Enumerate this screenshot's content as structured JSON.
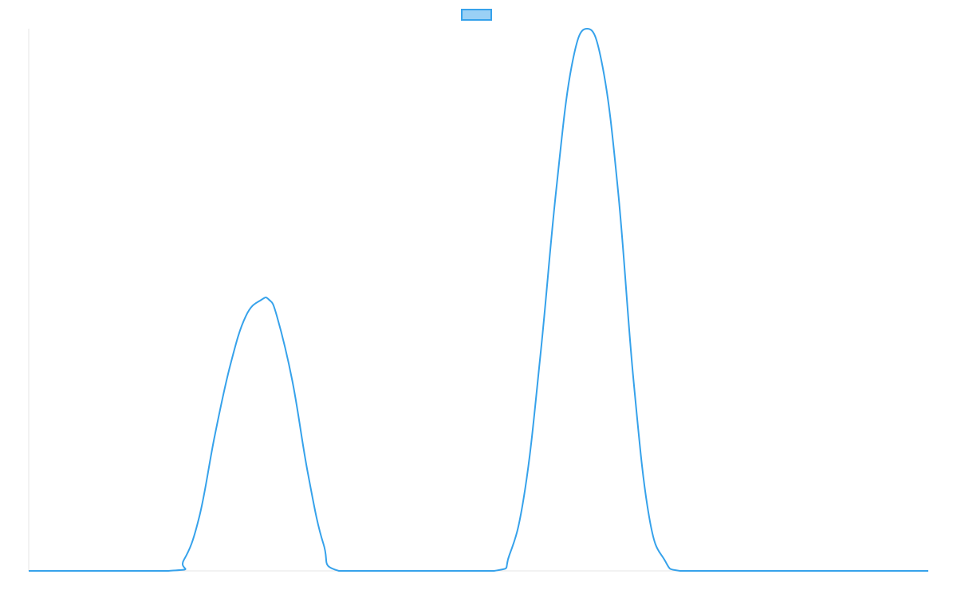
{
  "chart_data": {
    "type": "line",
    "title": "",
    "xlabel": "",
    "ylabel": "",
    "grid": false,
    "legend_placement": "top-center",
    "x": [
      0,
      0.9,
      1.0,
      1.1,
      1.2,
      1.3,
      1.4,
      1.5,
      1.55,
      1.6,
      1.7,
      1.8,
      1.9,
      2.0,
      2.5,
      3.0,
      3.1,
      3.2,
      3.3,
      3.4,
      3.5,
      3.6,
      3.7,
      3.8,
      3.9,
      4.0,
      4.1,
      4.2,
      4.5,
      5.8
    ],
    "xlim": [
      0,
      5.8
    ],
    "ylim": [
      0,
      1.0
    ],
    "series": [
      {
        "name": "",
        "color": "#36a2eb",
        "fill": "#9ad0f5",
        "values": [
          0,
          0,
          0.02,
          0.1,
          0.25,
          0.38,
          0.47,
          0.5,
          0.5,
          0.47,
          0.35,
          0.18,
          0.05,
          0,
          0,
          0,
          0.03,
          0.15,
          0.4,
          0.7,
          0.93,
          1.0,
          0.93,
          0.7,
          0.35,
          0.1,
          0.02,
          0,
          0,
          0
        ]
      }
    ]
  }
}
